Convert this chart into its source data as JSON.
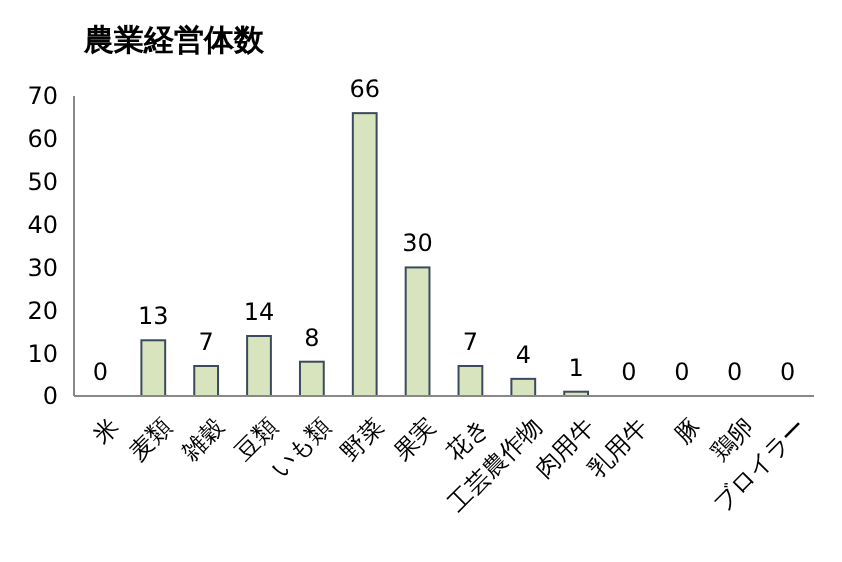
{
  "chart_data": {
    "type": "bar",
    "title": "農業経営体数",
    "categories": [
      "米",
      "麦類",
      "雑穀",
      "豆類",
      "いも類",
      "野菜",
      "果実",
      "花き",
      "工芸農作物",
      "肉用牛",
      "乳用牛",
      "豚",
      "鶏卵",
      "ブロイラー"
    ],
    "values": [
      0,
      13,
      7,
      14,
      8,
      66,
      30,
      7,
      4,
      1,
      0,
      0,
      0,
      0
    ],
    "color": "#d7e4bd",
    "ylim": [
      0,
      70
    ],
    "yticks": [
      0,
      10,
      20,
      30,
      40,
      50,
      60,
      70
    ],
    "grid": false,
    "data_labels": true
  }
}
